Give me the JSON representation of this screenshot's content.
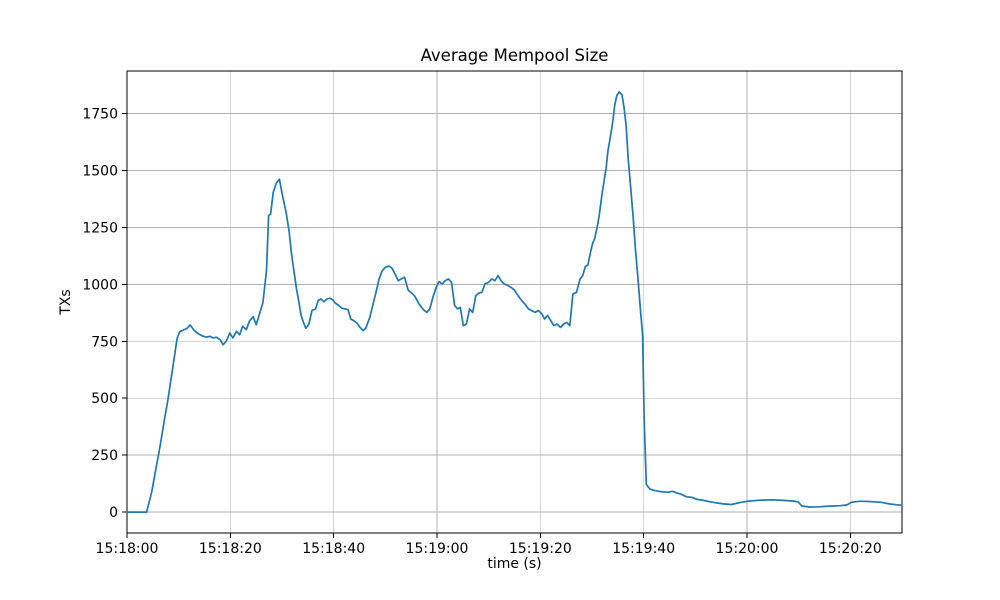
{
  "figure": {
    "background": "#ffffff",
    "text_color": "#000000",
    "grid_color": "#b0b0b0",
    "spine_color": "#000000"
  },
  "chart_data": {
    "type": "line",
    "title": "Average Mempool Size",
    "xlabel": "time (s)",
    "ylabel": "TXs",
    "grid": true,
    "legend": "none",
    "x_tick_labels": [
      "15:18:00",
      "15:18:20",
      "15:18:40",
      "15:19:00",
      "15:19:20",
      "15:19:40",
      "15:20:00",
      "15:20:20"
    ],
    "x_tick_positions_s": [
      0,
      20,
      40,
      60,
      80,
      100,
      120,
      140
    ],
    "y_ticks": [
      0,
      250,
      500,
      750,
      1000,
      1250,
      1500,
      1750
    ],
    "xlim_s": [
      0,
      150
    ],
    "ylim": [
      -92,
      1937
    ],
    "x_start_time": "15:18:00",
    "series": [
      {
        "name": "average-mempool-size",
        "color": "#1f77b4",
        "points": [
          [
            0,
            0
          ],
          [
            2,
            0
          ],
          [
            3.8,
            0
          ],
          [
            4.8,
            90
          ],
          [
            5.6,
            190
          ],
          [
            6.4,
            290
          ],
          [
            7.2,
            400
          ],
          [
            7.9,
            490
          ],
          [
            8.5,
            580
          ],
          [
            9.1,
            670
          ],
          [
            9.7,
            762
          ],
          [
            10.2,
            792
          ],
          [
            11,
            800
          ],
          [
            11.6,
            806
          ],
          [
            12.2,
            822
          ],
          [
            12.9,
            800
          ],
          [
            13.5,
            788
          ],
          [
            14.1,
            779
          ],
          [
            14.8,
            772
          ],
          [
            15.4,
            768
          ],
          [
            16,
            772
          ],
          [
            16.7,
            765
          ],
          [
            17.3,
            768
          ],
          [
            18,
            757
          ],
          [
            18.6,
            735
          ],
          [
            19.2,
            750
          ],
          [
            19.9,
            787
          ],
          [
            20.5,
            765
          ],
          [
            21.2,
            794
          ],
          [
            21.8,
            779
          ],
          [
            22.4,
            816
          ],
          [
            23.1,
            801
          ],
          [
            23.7,
            838
          ],
          [
            24.4,
            858
          ],
          [
            25,
            823
          ],
          [
            25.6,
            867
          ],
          [
            26.3,
            920
          ],
          [
            27,
            1060
          ],
          [
            27.4,
            1302
          ],
          [
            27.8,
            1308
          ],
          [
            28.3,
            1404
          ],
          [
            28.9,
            1445
          ],
          [
            29.5,
            1462
          ],
          [
            30.1,
            1390
          ],
          [
            30.8,
            1317
          ],
          [
            31.4,
            1230
          ],
          [
            31.8,
            1141
          ],
          [
            32.3,
            1060
          ],
          [
            32.8,
            980
          ],
          [
            33.3,
            920
          ],
          [
            33.7,
            863
          ],
          [
            34.2,
            830
          ],
          [
            34.6,
            807
          ],
          [
            35.2,
            826
          ],
          [
            35.8,
            885
          ],
          [
            36.5,
            892
          ],
          [
            37,
            929
          ],
          [
            37.5,
            936
          ],
          [
            38.1,
            924
          ],
          [
            38.7,
            936
          ],
          [
            39.3,
            939
          ],
          [
            39.8,
            933
          ],
          [
            40.3,
            918
          ],
          [
            41,
            907
          ],
          [
            41.6,
            895
          ],
          [
            42.2,
            892
          ],
          [
            42.8,
            889
          ],
          [
            43.3,
            848
          ],
          [
            43.9,
            841
          ],
          [
            44.5,
            830
          ],
          [
            45.1,
            811
          ],
          [
            45.7,
            797
          ],
          [
            46.2,
            807
          ],
          [
            47,
            855
          ],
          [
            47.6,
            910
          ],
          [
            48.2,
            965
          ],
          [
            48.8,
            1024
          ],
          [
            49.4,
            1060
          ],
          [
            50,
            1075
          ],
          [
            50.7,
            1080
          ],
          [
            51.3,
            1071
          ],
          [
            51.9,
            1045
          ],
          [
            52.5,
            1016
          ],
          [
            53.1,
            1024
          ],
          [
            53.7,
            1031
          ],
          [
            54.4,
            975
          ],
          [
            55.1,
            961
          ],
          [
            55.7,
            948
          ],
          [
            56.5,
            915
          ],
          [
            57.3,
            890
          ],
          [
            58,
            877
          ],
          [
            58.6,
            892
          ],
          [
            59.2,
            943
          ],
          [
            59.8,
            985
          ],
          [
            60.4,
            1012
          ],
          [
            61,
            1002
          ],
          [
            61.6,
            1016
          ],
          [
            62.2,
            1024
          ],
          [
            62.8,
            1009
          ],
          [
            63.4,
            907
          ],
          [
            64,
            892
          ],
          [
            64.5,
            899
          ],
          [
            65.1,
            819
          ],
          [
            65.7,
            826
          ],
          [
            66.3,
            892
          ],
          [
            66.9,
            877
          ],
          [
            67.5,
            950
          ],
          [
            68.1,
            962
          ],
          [
            68.7,
            965
          ],
          [
            69.3,
            1002
          ],
          [
            70,
            1009
          ],
          [
            70.6,
            1024
          ],
          [
            71.2,
            1016
          ],
          [
            71.8,
            1038
          ],
          [
            72.4,
            1016
          ],
          [
            73,
            1002
          ],
          [
            73.7,
            995
          ],
          [
            74.3,
            987
          ],
          [
            74.9,
            977
          ],
          [
            75.7,
            950
          ],
          [
            76.4,
            929
          ],
          [
            77,
            914
          ],
          [
            77.7,
            892
          ],
          [
            78.3,
            885
          ],
          [
            79,
            877
          ],
          [
            79.6,
            885
          ],
          [
            80.3,
            870
          ],
          [
            80.8,
            848
          ],
          [
            81.4,
            863
          ],
          [
            82,
            841
          ],
          [
            82.6,
            819
          ],
          [
            83.2,
            826
          ],
          [
            83.9,
            811
          ],
          [
            84.5,
            826
          ],
          [
            85.1,
            833
          ],
          [
            85.7,
            819
          ],
          [
            86.3,
            958
          ],
          [
            87,
            965
          ],
          [
            87.7,
            1024
          ],
          [
            88.2,
            1038
          ],
          [
            88.7,
            1078
          ],
          [
            89.2,
            1085
          ],
          [
            89.7,
            1141
          ],
          [
            90.1,
            1178
          ],
          [
            90.5,
            1200
          ],
          [
            91,
            1251
          ],
          [
            91.4,
            1302
          ],
          [
            91.9,
            1390
          ],
          [
            92.3,
            1449
          ],
          [
            92.7,
            1507
          ],
          [
            93.1,
            1588
          ],
          [
            93.6,
            1654
          ],
          [
            94,
            1712
          ],
          [
            94.4,
            1785
          ],
          [
            94.8,
            1830
          ],
          [
            95.3,
            1845
          ],
          [
            95.8,
            1832
          ],
          [
            96.2,
            1778
          ],
          [
            96.6,
            1698
          ],
          [
            97,
            1551
          ],
          [
            97.5,
            1419
          ],
          [
            98,
            1287
          ],
          [
            98.4,
            1156
          ],
          [
            98.9,
            1024
          ],
          [
            99.3,
            907
          ],
          [
            99.8,
            775
          ],
          [
            100.1,
            400
          ],
          [
            100.5,
            122
          ],
          [
            101.2,
            101
          ],
          [
            102.2,
            94
          ],
          [
            103.5,
            89
          ],
          [
            104.8,
            87
          ],
          [
            105.6,
            91
          ],
          [
            106.4,
            84
          ],
          [
            107.2,
            79
          ],
          [
            108.3,
            67
          ],
          [
            109.3,
            65
          ],
          [
            110.3,
            56
          ],
          [
            111.6,
            51
          ],
          [
            112.9,
            45
          ],
          [
            114.1,
            40
          ],
          [
            115.4,
            36
          ],
          [
            117,
            33
          ],
          [
            118.5,
            41
          ],
          [
            120.3,
            48
          ],
          [
            122.5,
            52
          ],
          [
            125,
            54
          ],
          [
            127,
            51
          ],
          [
            129,
            48
          ],
          [
            129.9,
            45
          ],
          [
            130.6,
            27
          ],
          [
            132,
            22
          ],
          [
            134,
            23
          ],
          [
            136,
            26
          ],
          [
            138,
            28
          ],
          [
            139.3,
            31
          ],
          [
            140.2,
            43
          ],
          [
            141.7,
            47
          ],
          [
            143,
            47
          ],
          [
            144.5,
            45
          ],
          [
            146,
            43
          ],
          [
            147.5,
            36
          ],
          [
            149,
            32
          ],
          [
            150,
            30
          ]
        ]
      }
    ]
  }
}
